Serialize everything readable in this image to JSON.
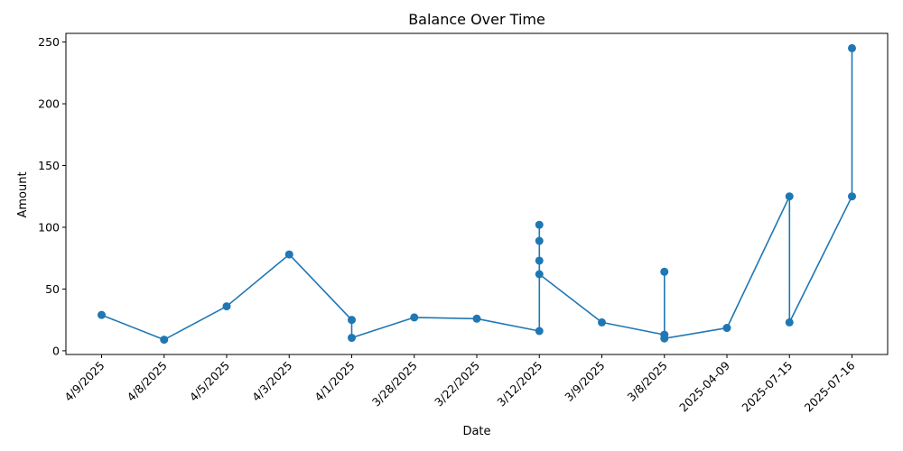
{
  "chart_data": {
    "type": "line",
    "title": "Balance Over Time",
    "xlabel": "Date",
    "ylabel": "Amount",
    "categories": [
      "4/9/2025",
      "4/8/2025",
      "4/5/2025",
      "4/3/2025",
      "4/1/2025",
      "3/28/2025",
      "3/22/2025",
      "3/12/2025",
      "3/9/2025",
      "3/8/2025",
      "2025-04-09",
      "2025-07-15",
      "2025-07-16"
    ],
    "yticks": [
      0,
      50,
      100,
      150,
      200,
      250
    ],
    "ylim": [
      -3,
      257
    ],
    "grid": false,
    "series": [
      {
        "name": "Balance",
        "color": "#1f77b4",
        "points": [
          {
            "x": "4/9/2025",
            "y": 29
          },
          {
            "x": "4/8/2025",
            "y": 9
          },
          {
            "x": "4/5/2025",
            "y": 36
          },
          {
            "x": "4/3/2025",
            "y": 78
          },
          {
            "x": "4/1/2025",
            "y": 25
          },
          {
            "x": "4/1/2025",
            "y": 10.5
          },
          {
            "x": "3/28/2025",
            "y": 27
          },
          {
            "x": "3/22/2025",
            "y": 26
          },
          {
            "x": "3/12/2025",
            "y": 16
          },
          {
            "x": "3/12/2025",
            "y": 102
          },
          {
            "x": "3/12/2025",
            "y": 89
          },
          {
            "x": "3/12/2025",
            "y": 73
          },
          {
            "x": "3/12/2025",
            "y": 62
          },
          {
            "x": "3/9/2025",
            "y": 23
          },
          {
            "x": "3/8/2025",
            "y": 13
          },
          {
            "x": "3/8/2025",
            "y": 64
          },
          {
            "x": "3/8/2025",
            "y": 10
          },
          {
            "x": "2025-04-09",
            "y": 18.5
          },
          {
            "x": "2025-07-15",
            "y": 125
          },
          {
            "x": "2025-07-15",
            "y": 23
          },
          {
            "x": "2025-07-16",
            "y": 125
          },
          {
            "x": "2025-07-16",
            "y": 245
          }
        ]
      }
    ]
  }
}
